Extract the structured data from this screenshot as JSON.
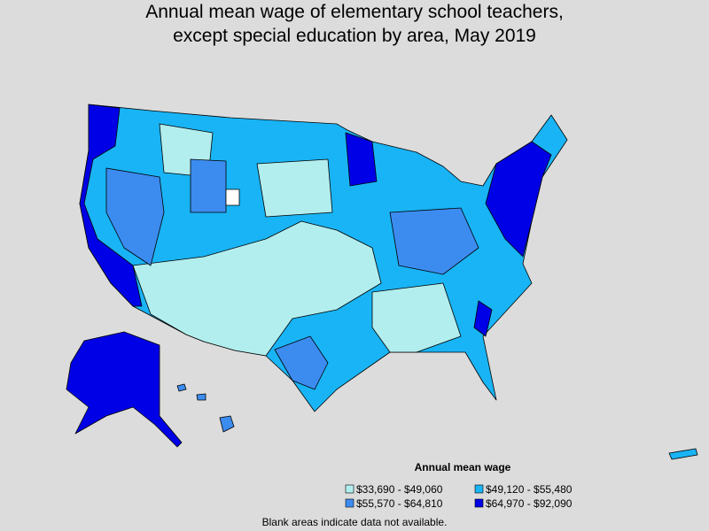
{
  "title": [
    "Annual mean wage of elementary school teachers,",
    "except special education by area, May 2019"
  ],
  "legend": {
    "title": "Annual mean wage",
    "items": [
      {
        "label": "$33,690 - $49,060",
        "color": "#b2eeee"
      },
      {
        "label": "$49,120 - $55,480",
        "color": "#19b4f5"
      },
      {
        "label": "$55,570 - $64,810",
        "color": "#3c8cf0"
      },
      {
        "label": "$64,970 - $92,090",
        "color": "#0000e6"
      }
    ]
  },
  "footnote": "Blank areas indicate data not available."
}
